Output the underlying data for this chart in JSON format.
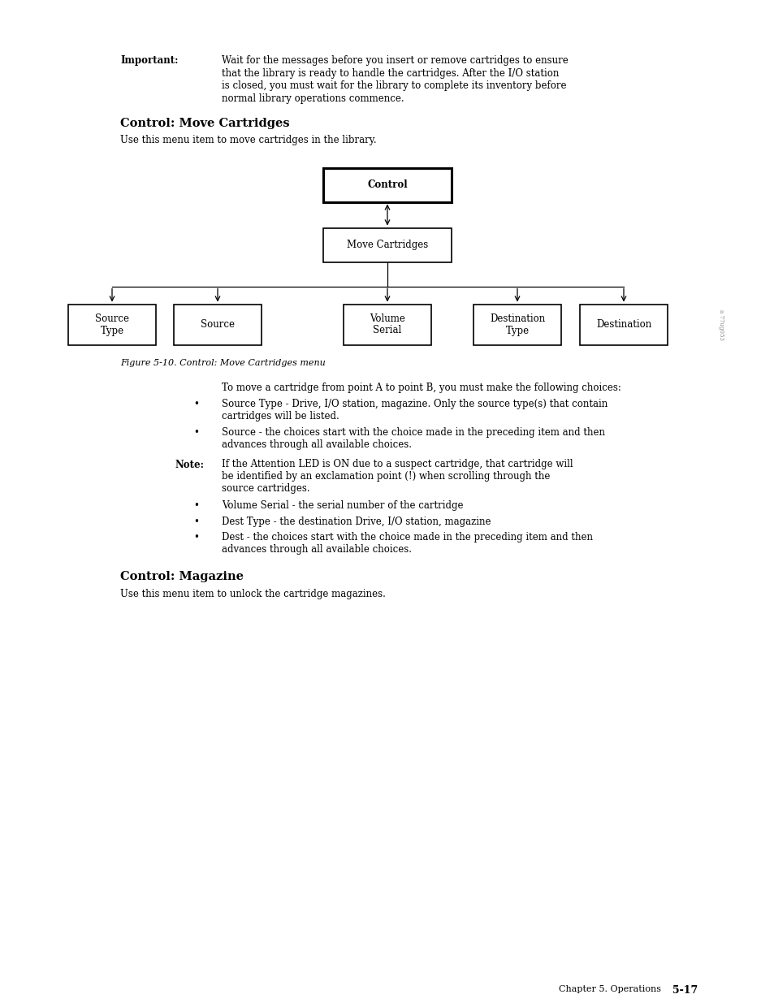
{
  "bg_color": "#ffffff",
  "page_width": 9.54,
  "page_height": 12.35,
  "important_label": "Important:",
  "important_text": [
    "Wait for the messages before you insert or remove cartridges to ensure",
    "that the library is ready to handle the cartridges. After the I/O station",
    "is closed, you must wait for the library to complete its inventory before",
    "normal library operations commence."
  ],
  "section1_title": "Control: Move Cartridges",
  "section1_intro": "Use this menu item to move cartridges in the library.",
  "figure_caption": "Figure 5-10. Control: Move Cartridges menu",
  "body_intro": "To move a cartridge from point A to point B, you must make the following choices:",
  "bullet1_line1": "Source Type - Drive, I/O station, magazine. Only the source type(s) that contain",
  "bullet1_line2": "cartridges will be listed.",
  "bullet2_line1": "Source - the choices start with the choice made in the preceding item and then",
  "bullet2_line2": "advances through all available choices.",
  "note_label": "Note:",
  "note_line1": "If the Attention LED is ON due to a suspect cartridge, that cartridge will",
  "note_line2": "be identified by an exclamation point (!) when scrolling through the",
  "note_line3": "source cartridges.",
  "bullet3": "Volume Serial - the serial number of the cartridge",
  "bullet4": "Dest Type - the destination Drive, I/O station, magazine",
  "bullet5_line1": "Dest - the choices start with the choice made in the preceding item and then",
  "bullet5_line2": "advances through all available choices.",
  "section2_title": "Control: Magazine",
  "section2_intro": "Use this menu item to unlock the cartridge magazines.",
  "footer_text": "Chapter 5. Operations",
  "footer_page": "5-17",
  "watermark": "a 77ug053"
}
